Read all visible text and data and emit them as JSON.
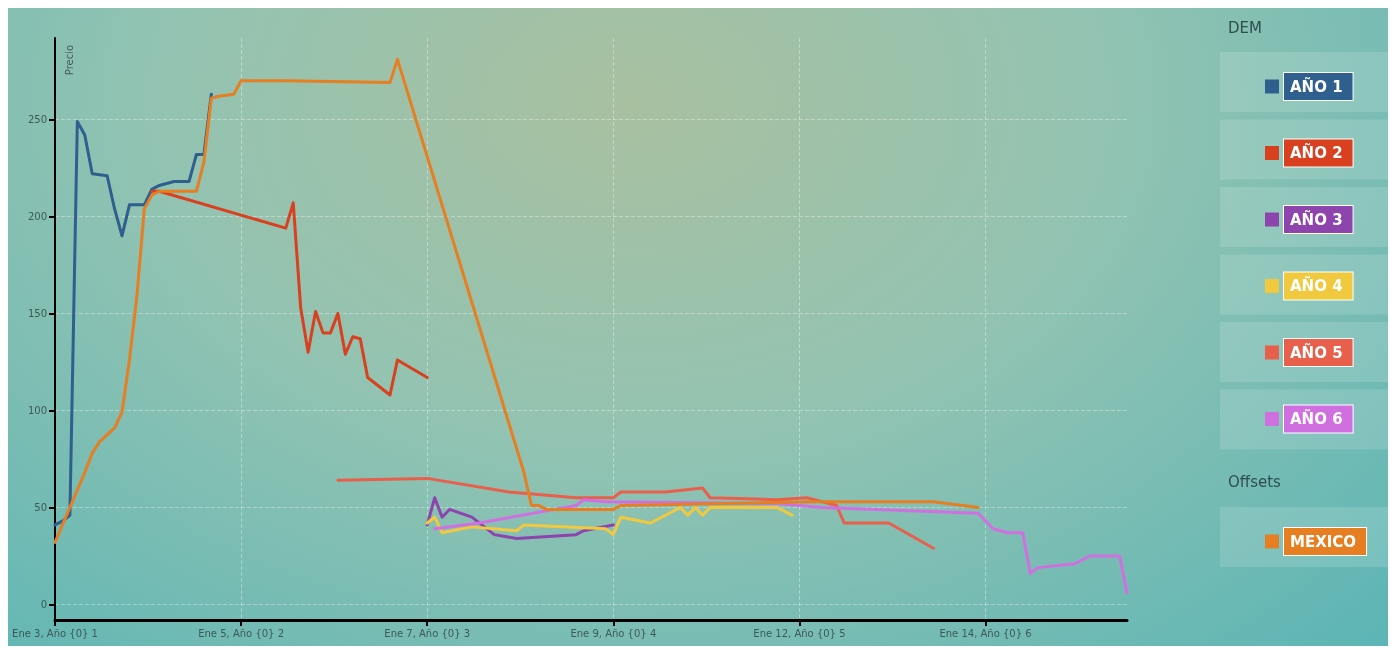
{
  "chart_data": {
    "type": "line",
    "ylabel": "Precio",
    "legend_title": "DEM",
    "annotations": [
      "Offsets"
    ],
    "categories": [
      "Ene 3, Año {0} 1",
      null,
      null,
      null,
      null,
      null,
      null,
      null,
      null,
      null,
      null,
      null,
      null,
      null,
      null,
      null,
      null,
      null,
      null,
      null,
      null,
      null,
      null,
      null,
      null,
      "Ene 5, Año {0} 2",
      null,
      null,
      null,
      null,
      null,
      null,
      null,
      null,
      null,
      null,
      null,
      null,
      null,
      null,
      null,
      null,
      null,
      null,
      null,
      null,
      null,
      null,
      null,
      null,
      "Ene 7, Año {0} 3",
      null,
      null,
      null,
      null,
      null,
      null,
      null,
      null,
      null,
      null,
      null,
      null,
      null,
      null,
      null,
      null,
      null,
      null,
      null,
      null,
      null,
      null,
      null,
      null,
      "Ene 9, Año {0} 4",
      null,
      null,
      null,
      null,
      null,
      null,
      null,
      null,
      null,
      null,
      null,
      null,
      null,
      null,
      null,
      null,
      null,
      null,
      null,
      null,
      null,
      null,
      null,
      null,
      "Ene 12, Año {0} 5",
      null,
      null,
      null,
      null,
      null,
      null,
      null,
      null,
      null,
      null,
      null,
      null,
      null,
      null,
      null,
      null,
      null,
      null,
      null,
      null,
      null,
      null,
      null,
      null,
      "Ene 14, Año {0} 6",
      null,
      null,
      null,
      null,
      null,
      null,
      null,
      null,
      null,
      null,
      null,
      null,
      null,
      null,
      null,
      null,
      null,
      null,
      null
    ],
    "ylim": [
      -8,
      292
    ],
    "yticks": [
      0,
      50,
      100,
      150,
      200,
      250
    ],
    "grid": true,
    "legend": "right",
    "marker": "none",
    "line_style": "solid",
    "series": [
      {
        "name": "AÑO 1",
        "color": "#2e5f8e",
        "values": [
          41,
          43,
          46,
          249,
          242,
          222,
          null,
          221,
          204,
          190,
          206,
          null,
          206,
          214,
          216,
          null,
          218,
          null,
          218,
          232,
          232,
          263,
          null,
          null,
          null,
          null,
          null,
          null,
          null,
          null,
          null,
          null,
          null,
          null,
          null,
          null,
          null,
          null,
          null,
          null,
          null,
          null,
          null,
          null,
          null,
          null,
          null,
          null,
          null,
          null,
          null,
          null,
          null,
          null,
          null,
          null,
          null,
          null,
          null,
          null,
          null,
          null,
          null,
          null,
          null,
          null,
          null,
          null,
          null,
          null,
          null,
          null,
          null,
          null,
          null,
          null,
          null,
          null,
          null,
          null,
          null,
          null,
          null,
          null,
          null,
          null,
          null,
          null,
          null,
          null,
          null,
          null,
          null,
          null,
          null,
          null,
          null,
          null,
          null,
          null,
          null,
          null,
          null,
          null,
          null,
          null,
          null,
          null,
          null,
          null,
          null,
          null,
          null,
          null,
          null,
          null,
          null,
          null,
          null,
          null,
          null,
          null,
          null,
          null,
          null,
          null,
          null,
          null,
          null,
          null,
          null,
          null,
          null,
          null,
          null,
          null,
          null,
          null,
          null,
          null,
          null,
          null,
          null,
          null,
          null
        ]
      },
      {
        "name": "AÑO 2",
        "color": "#d9401f",
        "values": [
          null,
          null,
          null,
          null,
          null,
          null,
          null,
          null,
          null,
          null,
          null,
          null,
          null,
          213,
          213,
          null,
          null,
          null,
          null,
          null,
          null,
          null,
          null,
          null,
          null,
          null,
          null,
          null,
          null,
          null,
          null,
          194,
          207,
          153,
          130,
          151,
          140,
          140,
          150,
          129,
          138,
          137,
          117,
          null,
          null,
          108,
          126,
          null,
          null,
          null,
          117,
          null,
          null,
          null,
          null,
          null,
          null,
          null,
          null,
          null,
          null,
          null,
          null,
          null,
          null,
          null,
          null,
          null,
          null,
          null,
          null,
          null,
          null,
          null,
          null,
          null,
          null,
          null,
          null,
          null,
          null,
          null,
          null,
          null,
          null,
          null,
          null,
          null,
          null,
          null,
          null,
          null,
          null,
          null,
          null,
          null,
          null,
          null,
          null,
          null,
          null,
          null,
          null,
          null,
          null,
          null,
          null,
          null,
          null,
          null,
          null,
          null,
          null,
          null,
          null,
          null,
          null,
          null,
          null,
          null,
          null,
          null,
          null,
          null,
          null,
          null,
          null,
          null,
          null,
          null,
          null,
          null,
          null,
          null,
          null,
          null,
          null,
          null,
          null,
          null,
          null,
          null,
          null,
          null,
          null
        ]
      },
      {
        "name": "AÑO 3",
        "color": "#8e44ad",
        "values": [
          null,
          null,
          null,
          null,
          null,
          null,
          null,
          null,
          null,
          null,
          null,
          null,
          null,
          null,
          null,
          null,
          null,
          null,
          null,
          null,
          null,
          null,
          null,
          null,
          null,
          null,
          null,
          null,
          null,
          null,
          null,
          null,
          null,
          null,
          null,
          null,
          null,
          null,
          null,
          null,
          null,
          null,
          null,
          null,
          null,
          null,
          null,
          null,
          null,
          null,
          41,
          55,
          45,
          49,
          null,
          null,
          45,
          null,
          null,
          36,
          null,
          null,
          34,
          null,
          null,
          null,
          null,
          null,
          null,
          null,
          36,
          38,
          null,
          null,
          null,
          41,
          null,
          null,
          null,
          null,
          null,
          null,
          null,
          null,
          null,
          null,
          null,
          null,
          null,
          null,
          null,
          null,
          null,
          null,
          null,
          null,
          null,
          null,
          null,
          null,
          null,
          null,
          null,
          null,
          null,
          null,
          null,
          null,
          null,
          null,
          null,
          null,
          null,
          null,
          null,
          null,
          null,
          null,
          null,
          null,
          null,
          null,
          null,
          null,
          null,
          null,
          null,
          null,
          null,
          null,
          null,
          null,
          null,
          null,
          null,
          null,
          null,
          null,
          null,
          null,
          null,
          null,
          null,
          null,
          null
        ]
      },
      {
        "name": "AÑO 4",
        "color": "#f0c93f",
        "values": [
          null,
          null,
          null,
          null,
          null,
          null,
          null,
          null,
          null,
          null,
          null,
          null,
          null,
          null,
          null,
          null,
          null,
          null,
          null,
          null,
          null,
          null,
          null,
          null,
          null,
          null,
          null,
          null,
          null,
          null,
          null,
          null,
          null,
          null,
          null,
          null,
          null,
          null,
          null,
          null,
          null,
          null,
          null,
          null,
          null,
          null,
          null,
          null,
          null,
          null,
          42,
          45,
          37,
          null,
          null,
          null,
          40,
          null,
          null,
          null,
          null,
          null,
          38,
          41,
          null,
          null,
          null,
          null,
          null,
          null,
          null,
          null,
          null,
          null,
          39,
          36,
          45,
          null,
          null,
          null,
          42,
          null,
          46,
          null,
          50,
          46,
          50,
          46,
          50,
          null,
          null,
          null,
          null,
          null,
          null,
          null,
          null,
          50,
          null,
          46,
          null,
          null,
          null,
          null,
          null,
          null,
          null,
          null,
          null,
          null,
          null,
          null,
          null,
          null,
          null,
          null,
          null,
          null,
          null,
          null,
          null,
          null,
          null,
          null,
          null,
          null,
          null,
          null,
          null,
          null,
          null,
          null,
          null,
          null,
          null,
          null,
          null,
          null,
          null,
          null,
          null,
          null,
          null,
          null,
          null
        ]
      },
      {
        "name": "AÑO 5",
        "color": "#e8604c",
        "values": [
          null,
          null,
          null,
          null,
          null,
          null,
          null,
          null,
          null,
          null,
          null,
          null,
          null,
          null,
          null,
          null,
          null,
          null,
          null,
          null,
          null,
          null,
          null,
          null,
          null,
          null,
          null,
          null,
          null,
          null,
          null,
          null,
          null,
          null,
          null,
          null,
          null,
          null,
          64,
          null,
          null,
          null,
          null,
          null,
          null,
          null,
          null,
          null,
          null,
          null,
          65,
          null,
          null,
          null,
          null,
          null,
          null,
          null,
          null,
          null,
          null,
          58,
          null,
          null,
          null,
          null,
          null,
          null,
          null,
          null,
          55,
          null,
          null,
          null,
          null,
          55,
          58,
          null,
          null,
          null,
          null,
          null,
          58,
          null,
          null,
          null,
          null,
          60,
          55,
          null,
          null,
          null,
          null,
          null,
          null,
          null,
          null,
          54,
          null,
          null,
          null,
          55,
          null,
          null,
          null,
          51,
          42,
          null,
          null,
          null,
          null,
          null,
          42,
          null,
          null,
          null,
          null,
          null,
          29,
          null,
          null,
          null,
          null,
          null,
          null,
          null,
          null,
          null,
          null,
          null,
          null,
          null,
          null,
          null,
          null,
          null,
          null,
          null,
          null,
          null,
          null,
          null,
          null,
          null,
          null
        ]
      },
      {
        "name": "AÑO 6",
        "color": "#d070e0",
        "values": [
          null,
          null,
          null,
          null,
          null,
          null,
          null,
          null,
          null,
          null,
          null,
          null,
          null,
          null,
          null,
          null,
          null,
          null,
          null,
          null,
          null,
          null,
          null,
          null,
          null,
          null,
          null,
          null,
          null,
          null,
          null,
          null,
          null,
          null,
          null,
          null,
          null,
          null,
          null,
          null,
          null,
          null,
          null,
          null,
          null,
          null,
          null,
          null,
          null,
          null,
          null,
          39,
          null,
          null,
          null,
          null,
          null,
          42,
          null,
          null,
          null,
          null,
          null,
          null,
          null,
          null,
          null,
          null,
          null,
          null,
          51,
          54,
          null,
          null,
          53,
          null,
          null,
          null,
          null,
          null,
          null,
          null,
          null,
          null,
          null,
          null,
          null,
          null,
          null,
          null,
          null,
          null,
          null,
          null,
          null,
          null,
          null,
          52,
          null,
          null,
          null,
          null,
          null,
          50,
          null,
          null,
          null,
          null,
          null,
          null,
          null,
          null,
          null,
          null,
          null,
          null,
          null,
          null,
          null,
          null,
          null,
          null,
          null,
          null,
          47,
          43,
          39,
          null,
          37,
          null,
          37,
          16,
          19,
          null,
          null,
          null,
          null,
          21,
          null,
          25,
          null,
          null,
          null,
          25,
          6
        ]
      },
      {
        "name": "MEXICO",
        "color": "#e67e22",
        "values": [
          32,
          41,
          null,
          null,
          68,
          78,
          84,
          null,
          91,
          99,
          126,
          159,
          204,
          211,
          213,
          null,
          null,
          null,
          null,
          213,
          228,
          261,
          262,
          null,
          263,
          270,
          null,
          null,
          null,
          null,
          null,
          270,
          null,
          null,
          null,
          null,
          null,
          null,
          null,
          null,
          null,
          null,
          null,
          null,
          null,
          269,
          281,
          null,
          null,
          null,
          null,
          null,
          null,
          null,
          null,
          null,
          null,
          null,
          null,
          null,
          null,
          null,
          null,
          68,
          51,
          51,
          49,
          null,
          null,
          null,
          null,
          null,
          null,
          null,
          null,
          49,
          51,
          null,
          null,
          null,
          null,
          null,
          null,
          null,
          null,
          null,
          null,
          null,
          null,
          null,
          null,
          null,
          null,
          null,
          null,
          null,
          null,
          null,
          null,
          null,
          null,
          null,
          53,
          null,
          null,
          null,
          null,
          null,
          null,
          null,
          null,
          null,
          null,
          null,
          null,
          null,
          null,
          null,
          53,
          null,
          null,
          null,
          null,
          null,
          50,
          null,
          null,
          null,
          null,
          null,
          null,
          null,
          null,
          null,
          null,
          null,
          null,
          null,
          null,
          null,
          null,
          null,
          null,
          null,
          null
        ]
      }
    ]
  }
}
